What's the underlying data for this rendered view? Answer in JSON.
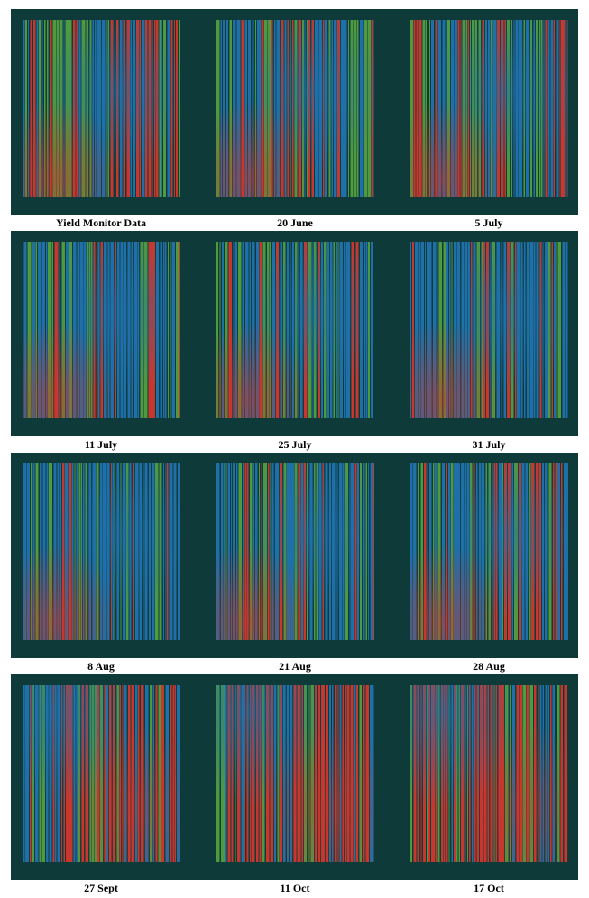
{
  "panels": [
    {
      "label": "Yield Monitor Data"
    },
    {
      "label": "20 June"
    },
    {
      "label": "5 July"
    },
    {
      "label": "11 July"
    },
    {
      "label": "25 July"
    },
    {
      "label": "31 July"
    },
    {
      "label": "8 Aug"
    },
    {
      "label": "21 Aug"
    },
    {
      "label": "28 Aug"
    },
    {
      "label": "27 Sept"
    },
    {
      "label": "11 Oct"
    },
    {
      "label": "17 Oct"
    }
  ]
}
